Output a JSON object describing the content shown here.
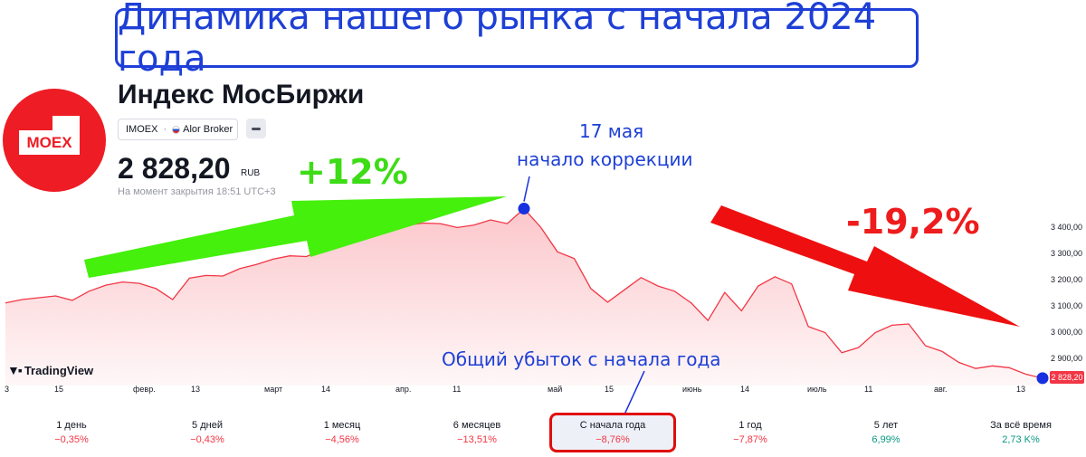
{
  "banner": {
    "title": "Динамика нашего рынка с начала 2024 года"
  },
  "logo": {
    "text": "MOEX"
  },
  "instrument": {
    "title": "Индекс МосБиржи",
    "ticker": "IMOEX",
    "broker": "Alor Broker",
    "price": "2 828,20",
    "currency": "RUB",
    "close_note": "На момент закрытия 18:51 UTC+3"
  },
  "annotations": {
    "gain": "+12%",
    "loss": "-19,2%",
    "peak_date": "17 мая",
    "peak_label": "начало коррекции",
    "total_loss": "Общий убыток с начала года"
  },
  "tradingview": {
    "label": "TradingView"
  },
  "colors": {
    "line": "#f23645",
    "area": "#fbe3e4",
    "gain_arrow": "#44f00c",
    "loss_arrow": "#ee1010",
    "marker": "#1730e0"
  },
  "chart_data": {
    "type": "area",
    "title": "",
    "y_ticks": [
      "3 400,00",
      "3 300,00",
      "3 200,00",
      "3 100,00",
      "3 000,00",
      "2 900,00"
    ],
    "last_price_label": "2 828,20",
    "x_ticks": [
      "3",
      "15",
      "февр.",
      "13",
      "март",
      "14",
      "апр.",
      "11",
      "май",
      "15",
      "июнь",
      "14",
      "июль",
      "11",
      "авг.",
      "13"
    ],
    "ylim": [
      2800,
      3470
    ],
    "values": [
      3115,
      3128,
      3135,
      3142,
      3125,
      3160,
      3183,
      3195,
      3190,
      3170,
      3128,
      3210,
      3220,
      3218,
      3246,
      3262,
      3282,
      3295,
      3292,
      3320,
      3340,
      3360,
      3388,
      3395,
      3412,
      3420,
      3418,
      3403,
      3412,
      3432,
      3418,
      3475,
      3404,
      3310,
      3285,
      3170,
      3118,
      3165,
      3212,
      3180,
      3160,
      3115,
      3048,
      3155,
      3085,
      3180,
      3215,
      3188,
      3025,
      3002,
      2925,
      2945,
      3002,
      3030,
      3035,
      2952,
      2930,
      2888,
      2865,
      2875,
      2868,
      2843,
      2828
    ]
  },
  "periods": [
    {
      "label": "1 день",
      "value": "−0,35%",
      "sign": "neg"
    },
    {
      "label": "5 дней",
      "value": "−0,43%",
      "sign": "neg"
    },
    {
      "label": "1 месяц",
      "value": "−4,56%",
      "sign": "neg"
    },
    {
      "label": "6 месяцев",
      "value": "−13,51%",
      "sign": "neg"
    },
    {
      "label": "С начала года",
      "value": "−8,76%",
      "sign": "neg"
    },
    {
      "label": "1 год",
      "value": "−7,87%",
      "sign": "neg"
    },
    {
      "label": "5 лет",
      "value": "6,99%",
      "sign": "pos"
    },
    {
      "label": "За всё время",
      "value": "2,73 K%",
      "sign": "pos"
    }
  ]
}
